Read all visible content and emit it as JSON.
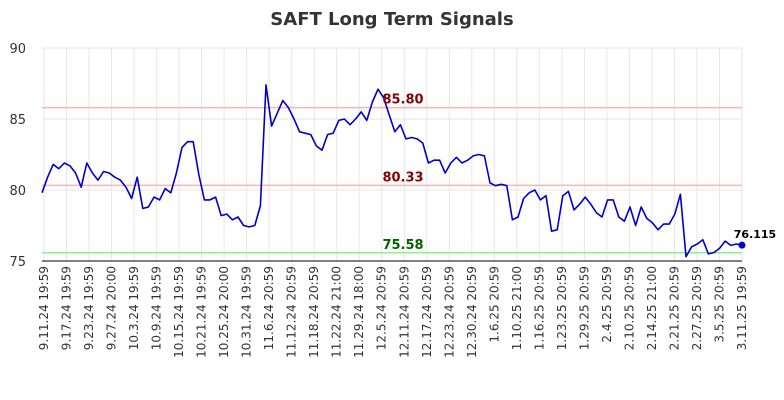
{
  "chart_data": {
    "type": "line",
    "title": "SAFT Long Term Signals",
    "xlabel": "",
    "ylabel": "",
    "ylim": [
      75,
      90
    ],
    "yticks": [
      75,
      80,
      85,
      90
    ],
    "grid": true,
    "xtick_labels": [
      "9.11.24 19:59",
      "9.17.24 19:59",
      "9.23.24 19:59",
      "9.27.24 20:00",
      "10.3.24 19:59",
      "10.9.24 19:59",
      "10.15.24 19:59",
      "10.21.24 19:59",
      "10.25.24 20:00",
      "10.31.24 19:59",
      "11.6.24 20:59",
      "11.12.24 20:59",
      "11.18.24 20:59",
      "11.22.24 21:00",
      "11.29.24 18:00",
      "12.5.24 20:59",
      "12.11.24 20:59",
      "12.17.24 20:59",
      "12.23.24 20:59",
      "12.30.24 20:59",
      "1.6.25 20:59",
      "1.10.25 21:00",
      "1.16.25 20:59",
      "1.23.25 20:59",
      "1.29.25 20:59",
      "2.4.25 20:59",
      "2.10.25 20:59",
      "2.14.25 21:00",
      "2.21.25 20:59",
      "2.27.25 20:59",
      "3.5.25 20:59",
      "3.11.25 19:59"
    ],
    "series": [
      {
        "color": "#0000cc",
        "values": [
          79.8,
          80.9,
          81.8,
          81.5,
          81.9,
          81.7,
          81.2,
          80.2,
          81.9,
          81.2,
          80.7,
          81.3,
          81.2,
          80.9,
          80.7,
          80.2,
          79.4,
          80.9,
          78.7,
          78.8,
          79.5,
          79.3,
          80.1,
          79.8,
          81.2,
          83.0,
          83.4,
          83.4,
          81.1,
          79.3,
          79.3,
          79.5,
          78.2,
          78.3,
          77.9,
          78.1,
          77.5,
          77.4,
          77.5,
          78.9,
          87.4,
          84.5,
          85.4,
          86.3,
          85.8,
          85.0,
          84.1,
          84.0,
          83.9,
          83.1,
          82.8,
          83.9,
          84.0,
          84.9,
          85.0,
          84.6,
          85.0,
          85.5,
          84.9,
          86.2,
          87.1,
          86.5,
          85.3,
          84.1,
          84.6,
          83.6,
          83.7,
          83.6,
          83.3,
          81.9,
          82.1,
          82.1,
          81.2,
          81.9,
          82.3,
          81.9,
          82.1,
          82.4,
          82.5,
          82.4,
          80.5,
          80.3,
          80.4,
          80.3,
          77.9,
          78.1,
          79.4,
          79.8,
          80.0,
          79.3,
          79.6,
          77.1,
          77.2,
          79.6,
          79.9,
          78.6,
          79.0,
          79.5,
          79.0,
          78.4,
          78.1,
          79.3,
          79.3,
          78.1,
          77.8,
          78.8,
          77.5,
          78.8,
          78.0,
          77.7,
          77.2,
          77.6,
          77.6,
          78.3,
          79.7,
          75.3,
          76.0,
          76.2,
          76.5,
          75.5,
          75.6,
          75.9,
          76.4,
          76.1,
          76.2,
          76.115
        ]
      }
    ],
    "levels": [
      {
        "value": 85.8,
        "label": "85.80",
        "line_color": "#ffb3b3",
        "label_color": "#8b0000"
      },
      {
        "value": 80.33,
        "label": "80.33",
        "line_color": "#ffb3b3",
        "label_color": "#8b0000"
      },
      {
        "value": 75.58,
        "label": "75.58",
        "line_color": "#90ee90",
        "label_color": "#006400"
      }
    ],
    "last_value_label": "76.115"
  }
}
